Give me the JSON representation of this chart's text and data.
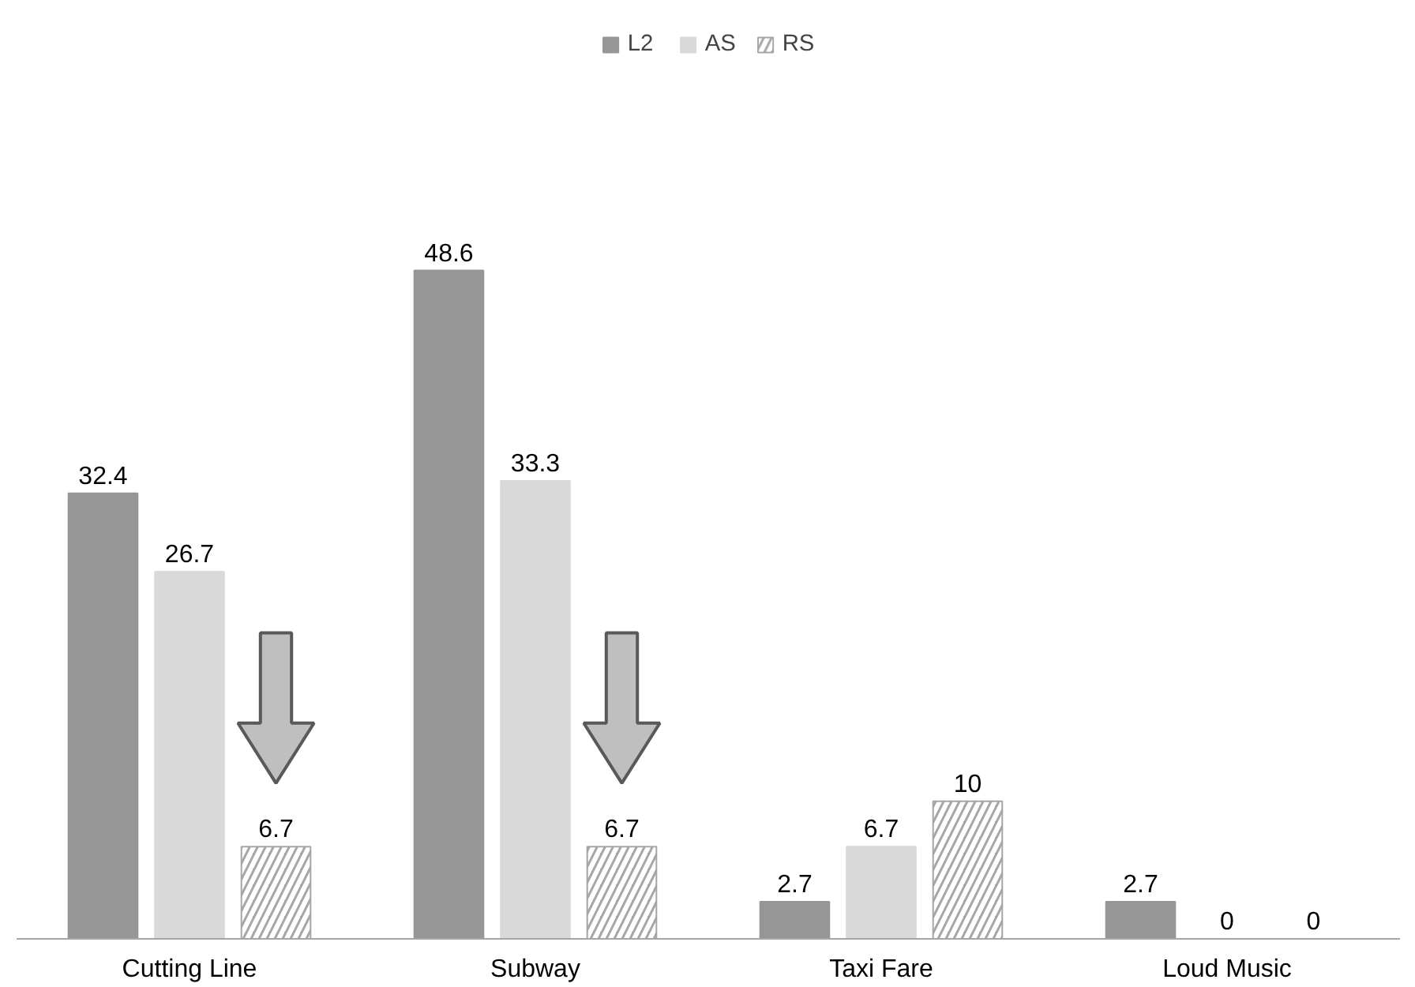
{
  "chart_data": {
    "type": "bar",
    "categories": [
      "Cutting Line",
      "Subway",
      "Taxi Fare",
      "Loud Music"
    ],
    "series": [
      {
        "name": "L2",
        "color": "#969696",
        "values": [
          32.4,
          48.6,
          2.7,
          2.7
        ]
      },
      {
        "name": "AS",
        "color": "#d9d9d9",
        "values": [
          26.7,
          33.3,
          6.7,
          0
        ]
      },
      {
        "name": "RS",
        "color": "#a6a6a6",
        "values": [
          6.7,
          6.7,
          10,
          0
        ]
      }
    ],
    "data_labels": true,
    "legend": "top",
    "grid": false
  }
}
